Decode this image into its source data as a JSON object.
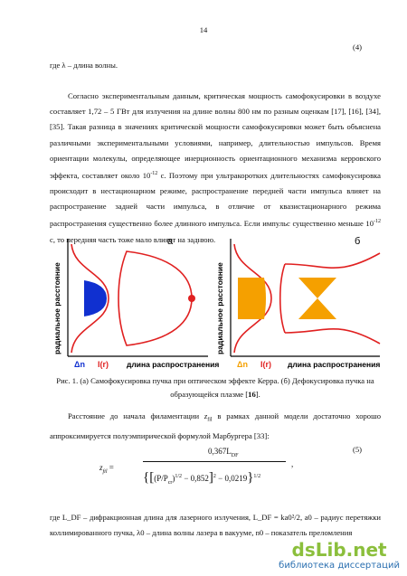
{
  "page_number": "14",
  "eq4_number": "(4)",
  "paragraph1": "где λ – длина волны.",
  "paragraph2": {
    "part1": "Согласно экспериментальным данным, критическая мощность самофокусировки в воздухе составляет 1,72 – 5 ГВт для излучения на длине волны 800 нм по разным оценкам [17], [16], [34], [35]. Такая разница в значениях критической мощности самофокусировки может быть объяснена различными экспериментальными условиями, например, длительностью импульсов. Время ориентации молекулы, определяющее инерционность ориентационного механизма керровского эффекта, составляет около 10",
    "sup1": "-12",
    "part2": " с. Поэтому при ультракоротких длительностях самофокусировка происходит в нестационарном режиме, распространение передней части импульса влияет на распространение задней части импульса, в отличие от квазистационарного режима распространения существенно более длинного импульса. Если импульс существенно меньше 10",
    "sup2": "-12",
    "part3": " с, то передняя часть тоже мало влияет на заднюю."
  },
  "figure": {
    "panel_a": "а",
    "panel_b": "б",
    "y_label_a": "радиальное расстояние",
    "y_label_b": "радиальное расстояние",
    "dn_a": "Δn",
    "ir_a": "I(r)",
    "x_label_a": "длина распространения",
    "dn_b": "Δn",
    "ir_b": "I(r)",
    "x_label_b": "длина распространения"
  },
  "caption": {
    "text": "Рис. 1. (а) Самофокусировка пучка при оптическом эффекте Керра. (б) Дефокусировка пучка на образующейся плазме [",
    "ref": "16",
    "end": "]."
  },
  "paragraph3": {
    "part1": "Расстояние до начала филаментации ",
    "var": "z",
    "sub": "fil",
    "part2": " в рамках данной модели достаточно хорошо аппроксимируется полуэмпирической формулой Марбургера [33]:"
  },
  "formula": {
    "lhs": "z",
    "lhs_sub": "fil",
    "eq": "=",
    "num": "0,367L",
    "num_sub": "DF",
    "p": "(P/P",
    "p_sub": "cr",
    "p_close": ")",
    "half": "1/2",
    "minus1": "− 0,852",
    "sq": "2",
    "minus2": "− 0,0219",
    "half2": "1/2",
    "comma": ","
  },
  "eq5_number": "(5)",
  "paragraph4": "где L_DF – дифракционная длина для лазерного излучения, L_DF = ka0²/2, a0 – радиус перетяжки коллимированного пучка, λ0 – длина волны лазера в вакууме, n0 – показатель преломления",
  "watermark": {
    "brand": "dsLib.net",
    "tagline": "библиотека диссертаций"
  }
}
